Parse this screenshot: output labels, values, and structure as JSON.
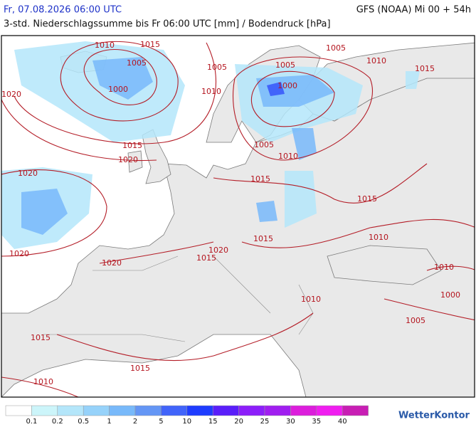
{
  "header": {
    "left": "Fr, 07.08.2026 06:00 UTC",
    "right": "GFS (NOAA) Mi 00 + 54h",
    "subtitle": "3-std. Niederschlagssumme bis Fr 06:00 UTC [mm] / Bodendruck [hPa]"
  },
  "isobar_labels": [
    "1010",
    "1015",
    "1005",
    "1000",
    "1005",
    "1010",
    "1020",
    "1015",
    "1020",
    "1020",
    "1020",
    "1005",
    "1005",
    "1000",
    "1010",
    "1015",
    "1005",
    "1010",
    "1015",
    "1015",
    "1015",
    "1010",
    "1020",
    "1015",
    "1020",
    "1010",
    "1000",
    "1010",
    "1005",
    "1015",
    "1015",
    "1010"
  ],
  "legend": {
    "colors": [
      "#ffffff",
      "#ccf5fa",
      "#b4e6fa",
      "#96d2fa",
      "#78b9fa",
      "#6496f5",
      "#4164fa",
      "#1e3cff",
      "#5a1efa",
      "#8c1efa",
      "#a01ef0",
      "#dc1edc",
      "#f01ef0",
      "#c81eb4"
    ],
    "labels": [
      "0.1",
      "0.2",
      "0.5",
      "1",
      "2",
      "5",
      "10",
      "15",
      "20",
      "25",
      "30",
      "35",
      "40"
    ]
  },
  "logo": "WetterKontor"
}
